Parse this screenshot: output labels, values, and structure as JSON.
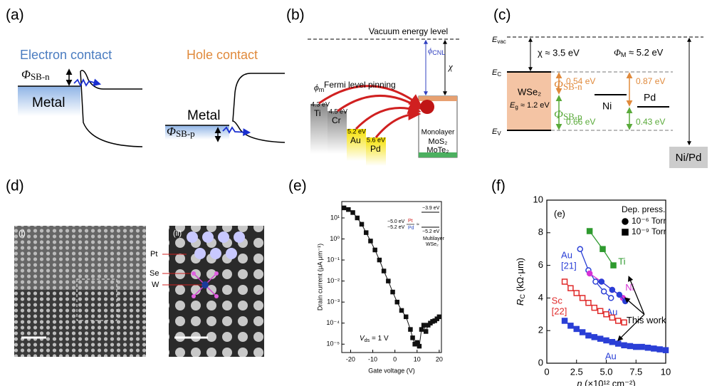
{
  "panels": {
    "a": {
      "label": "(a)",
      "electron_contact": "Electron contact",
      "hole_contact": "Hole contact",
      "phi_n": {
        "symbol": "Φ",
        "sub": "SB-n"
      },
      "phi_p": {
        "symbol": "Φ",
        "sub": "SB-p"
      },
      "metals": [
        "Metal",
        "Metal"
      ]
    },
    "b": {
      "label": "(b)",
      "vacuum": "Vacuum energy level",
      "phi_cnl": {
        "symbol": "ϕ",
        "sub": "CNL"
      },
      "chi": "χ",
      "pinning": "Fermi level pinning",
      "phi_m": {
        "symbol": "ϕ",
        "sub": "m"
      },
      "metals": [
        {
          "name": "Ti",
          "wf": "4.3 eV"
        },
        {
          "name": "Cr",
          "wf": "4.5 eV"
        },
        {
          "name": "Au",
          "wf": "5.2 eV"
        },
        {
          "name": "Pd",
          "wf": "5.6 eV"
        }
      ],
      "semiconductor": [
        "Monolayer",
        "MoS₂",
        "MoTe₂"
      ]
    },
    "c": {
      "label": "(c)",
      "e_vac": {
        "symbol": "E",
        "sub": "vac"
      },
      "e_c": {
        "symbol": "E",
        "sub": "C"
      },
      "e_v": {
        "symbol": "E",
        "sub": "V"
      },
      "chi": "χ ≈ 3.5 eV",
      "phi_m": {
        "symbol": "Φ",
        "sub": "M",
        "rest": " ≈ 5.2 eV"
      },
      "wse2": "WSe₂",
      "eg": {
        "symbol": "E",
        "sub": "g",
        "rest": " ≈ 1.2 eV"
      },
      "phi_n": {
        "symbol": "Φ",
        "sub": "SB-n"
      },
      "phi_p": {
        "symbol": "Φ",
        "sub": "SB-p"
      },
      "n_ni": "0.54 eV",
      "n_pd": "0.87 eV",
      "p_ni": "0.66 eV",
      "p_pd": "0.43 eV",
      "ni": "Ni",
      "pd": "Pd",
      "ni_pd": "Ni/Pd"
    },
    "d": {
      "label": "(d)",
      "img1": "(i)",
      "img2": "(ii)",
      "atoms": [
        "Pt",
        "Se",
        "W"
      ]
    }
  },
  "chart_data": [
    {
      "type": "line",
      "label": "(e)",
      "color": "#111111",
      "xlabel": "Gate voltage (V)",
      "ylabel": "Drain current (μA μm⁻¹)",
      "log_y": true,
      "x": [
        -23,
        -21,
        -19,
        -17,
        -15,
        -13,
        -11,
        -9,
        -7,
        -5,
        -3,
        -1,
        1,
        3,
        5,
        7,
        8,
        9,
        10,
        11,
        12,
        13,
        14,
        15,
        16,
        17,
        18,
        19,
        20
      ],
      "values": [
        30,
        25,
        18,
        10,
        5,
        2,
        0.8,
        0.3,
        0.1,
        0.03,
        0.01,
        0.003,
        0.001,
        0.0004,
        0.0002,
        5e-05,
        2e-05,
        1e-05,
        1.2e-05,
        8e-06,
        5e-05,
        8e-05,
        4e-05,
        8e-05,
        0.0001,
        0.00012,
        0.00013,
        0.00016,
        0.0002
      ],
      "xlim": [
        -24,
        21
      ],
      "xticks": [
        -20,
        -10,
        0,
        10,
        20
      ],
      "ylim": [
        4e-06,
        60
      ],
      "yticks": [
        {
          "value": 10,
          "label": "10¹"
        },
        {
          "value": 1,
          "label": "10⁰"
        },
        {
          "value": 0.1,
          "label": "10⁻¹"
        },
        {
          "value": 0.01,
          "label": "10⁻²"
        },
        {
          "value": 0.001,
          "label": "10⁻³"
        },
        {
          "value": 0.0001,
          "label": "10⁻⁴"
        },
        {
          "value": 1e-05,
          "label": "10⁻⁵"
        }
      ],
      "inset": {
        "pt_wf": "−5.0 eV",
        "pt": "Pt",
        "pd_wf": "−5.2 eV",
        "pd": "Pd",
        "approx": "≈",
        "cb": "−3.9 eV",
        "vb": "−5.2 eV",
        "material": [
          "Multilayer",
          "WSe₂"
        ]
      },
      "vds": {
        "symbol": "V",
        "sub": "ds",
        "rest": " = 1 V"
      }
    },
    {
      "type": "scatter",
      "label": "(f)",
      "xlabel": {
        "symbol": "n",
        "rest": " (×10¹² cm⁻²)"
      },
      "ylabel": {
        "symbol": "R",
        "sub": "C",
        "rest": " (kΩ·μm)"
      },
      "xlim": [
        0,
        10
      ],
      "xticks": [
        0,
        2.5,
        {
          "value": 5,
          "label": "5.0"
        },
        7.5,
        10
      ],
      "ylim": [
        0,
        10
      ],
      "yticks": [
        0,
        2,
        4,
        6,
        8,
        10
      ],
      "inset_label": "(e)",
      "annotation": "This work",
      "legend": {
        "title": "Dep. press.",
        "entries": [
          {
            "label": "10⁻⁶ Torr",
            "marker": "circle"
          },
          {
            "label": "10⁻⁹ Torr",
            "marker": "square"
          }
        ]
      },
      "series": [
        {
          "name": "Ti",
          "color": "#2e9a2e",
          "marker": "square",
          "x": [
            3.6,
            4.7,
            5.6
          ],
          "values": [
            8.1,
            7.0,
            6.0
          ]
        },
        {
          "name": "Au",
          "ref": "[21]",
          "color": "#2a3fd6",
          "marker": "circle-open",
          "x": [
            2.8,
            3.5,
            4.1,
            4.8,
            5.4
          ],
          "values": [
            7.0,
            5.7,
            5.0,
            4.4,
            4.0
          ]
        },
        {
          "name": "Ni",
          "color": "#d633d6",
          "marker": "circle",
          "x": [
            3.6,
            4.6,
            5.5,
            6.4
          ],
          "values": [
            5.5,
            5.0,
            4.5,
            4.0
          ]
        },
        {
          "name": "Au",
          "color": "#2a3fd6",
          "marker": "circle",
          "x": [
            4.6,
            5.5,
            6.1,
            6.6
          ],
          "values": [
            5.0,
            4.5,
            4.2,
            3.8
          ]
        },
        {
          "name": "Sc",
          "ref": "[22]",
          "color": "#e02a2a",
          "marker": "square-open",
          "x": [
            1.5,
            2.0,
            2.5,
            3.0,
            3.5,
            4.0,
            4.5,
            5.0,
            5.5,
            6.0,
            6.5
          ],
          "values": [
            5.0,
            4.6,
            4.3,
            4.0,
            3.7,
            3.4,
            3.2,
            3.0,
            2.8,
            2.6,
            2.5
          ]
        },
        {
          "name": "Au",
          "color": "#2a3fd6",
          "marker": "square",
          "x": [
            1.5,
            2.0,
            2.5,
            3.0,
            3.5,
            4.0,
            4.5,
            5.0,
            5.5,
            6.0,
            6.5,
            7.0,
            7.5,
            8.0,
            8.5,
            9.0,
            9.5,
            10.0
          ],
          "values": [
            2.6,
            2.3,
            2.1,
            1.9,
            1.7,
            1.6,
            1.5,
            1.4,
            1.3,
            1.2,
            1.1,
            1.05,
            1.0,
            1.0,
            0.95,
            0.9,
            0.85,
            0.8
          ]
        }
      ]
    }
  ]
}
